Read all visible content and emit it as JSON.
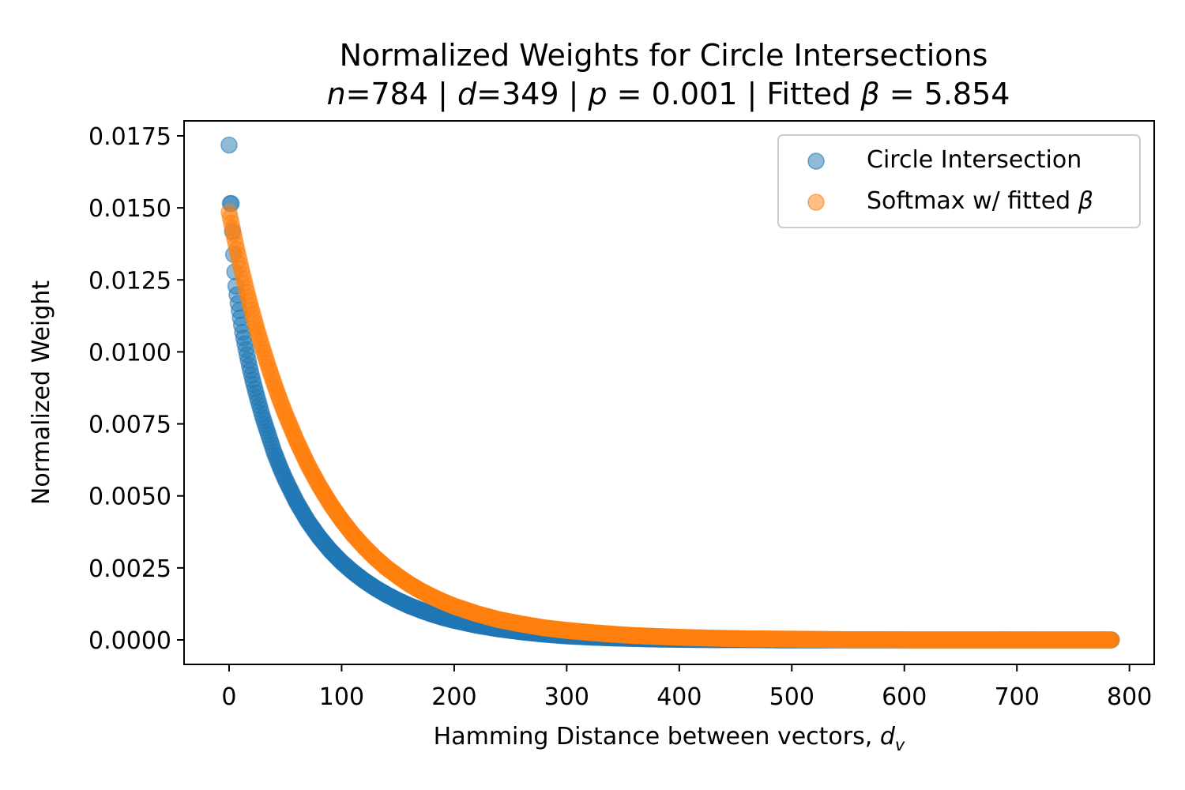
{
  "chart_data": {
    "type": "scatter",
    "title": "Normalized Weights for Circle Intersections",
    "subtitle": {
      "n_sym": "n",
      "n_val": "=784 | ",
      "d_sym": "d",
      "d_val": "=349 | ",
      "p_sym": "p",
      "p_val": " = 0.001 | Fitted ",
      "beta_sym": "β",
      "beta_val": " = 5.854"
    },
    "xlabel": {
      "text": "Hamming Distance between vectors, ",
      "sym": "d",
      "sub": "v"
    },
    "ylabel": "Normalized Weight",
    "xlim": [
      -40,
      822
    ],
    "ylim": [
      -0.00085,
      0.01802
    ],
    "xticks": [
      0,
      100,
      200,
      300,
      400,
      500,
      600,
      700,
      800
    ],
    "xtick_labels": [
      "0",
      "100",
      "200",
      "300",
      "400",
      "500",
      "600",
      "700",
      "800"
    ],
    "yticks": [
      0,
      0.0025,
      0.005,
      0.0075,
      0.01,
      0.0125,
      0.015,
      0.0175
    ],
    "ytick_labels": [
      "0.0000",
      "0.0025",
      "0.0050",
      "0.0075",
      "0.0100",
      "0.0125",
      "0.0150",
      "0.0175"
    ],
    "grid": false,
    "legend_position": "top-right",
    "series": [
      {
        "name": "Circle Intersection",
        "color": "#1f77b4",
        "x": [
          0,
          1,
          2,
          3,
          4,
          5,
          6,
          8,
          10,
          12,
          15,
          18,
          21,
          25,
          30,
          35,
          40,
          45,
          50,
          60,
          70,
          80,
          90,
          100,
          110,
          120,
          130,
          140,
          150,
          160,
          170,
          180,
          190,
          200,
          220,
          240,
          260,
          280,
          300,
          320,
          340,
          360,
          380,
          400,
          430,
          460,
          490,
          520,
          550,
          580,
          610,
          640,
          670,
          700,
          730,
          760,
          784
        ],
        "y": [
          0.01718,
          0.01515,
          0.01515,
          0.01418,
          0.01338,
          0.01278,
          0.01228,
          0.01168,
          0.01118,
          0.01068,
          0.01008,
          0.00952,
          0.00902,
          0.00842,
          0.00772,
          0.00712,
          0.00652,
          0.00602,
          0.00557,
          0.00478,
          0.00412,
          0.00357,
          0.0031,
          0.0027,
          0.00236,
          0.00206,
          0.0018,
          0.00157,
          0.00137,
          0.00119,
          0.00104,
          0.0009,
          0.00078,
          0.00068,
          0.00051,
          0.00038,
          0.00028,
          0.0002,
          0.00014,
          0.0001,
          7e-05,
          5e-05,
          3e-05,
          2e-05,
          1e-05,
          1e-05,
          0,
          0,
          0,
          0,
          0,
          0,
          0,
          0,
          0,
          0,
          0
        ]
      },
      {
        "name_prefix": "Softmax w/ fitted ",
        "name_sym": "β",
        "color": "#ff7f0e",
        "x": [
          0,
          2,
          4,
          6,
          8,
          10,
          12,
          15,
          18,
          21,
          25,
          30,
          35,
          40,
          45,
          50,
          60,
          70,
          80,
          90,
          100,
          110,
          120,
          130,
          140,
          150,
          160,
          170,
          180,
          190,
          200,
          220,
          240,
          260,
          280,
          300,
          320,
          340,
          360,
          380,
          400,
          430,
          460,
          490,
          520,
          550,
          580,
          610,
          640,
          670,
          700,
          730,
          760,
          784
        ],
        "y": [
          0.01485,
          0.01448,
          0.0141,
          0.01373,
          0.01338,
          0.01303,
          0.0127,
          0.01222,
          0.01176,
          0.01132,
          0.01076,
          0.0101,
          0.00948,
          0.0089,
          0.00835,
          0.00784,
          0.00691,
          0.00608,
          0.00536,
          0.00472,
          0.00416,
          0.00366,
          0.00323,
          0.00284,
          0.0025,
          0.00221,
          0.00194,
          0.00171,
          0.00151,
          0.00133,
          0.00117,
          0.00091,
          0.0007,
          0.00055,
          0.00042,
          0.00033,
          0.00026,
          0.0002,
          0.00015,
          0.00012,
          9e-05,
          6e-05,
          4e-05,
          3e-05,
          2e-05,
          1e-05,
          1e-05,
          0,
          0,
          0,
          0,
          0,
          0,
          0
        ]
      }
    ]
  }
}
